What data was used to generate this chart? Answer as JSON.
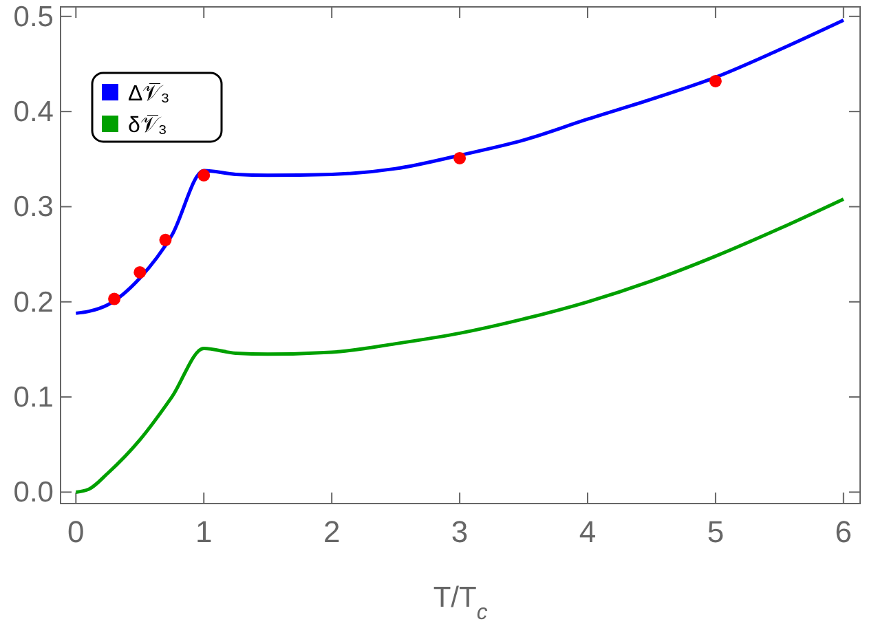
{
  "chart_data": {
    "type": "line",
    "xlabel": "T/T$_{c}$",
    "xlim": [
      -0.12,
      6.13
    ],
    "ylim": [
      -0.012,
      0.51
    ],
    "xticks": [
      0,
      1,
      2,
      3,
      4,
      5,
      6
    ],
    "yticks": [
      {
        "value": 0,
        "label": "0.0"
      },
      0.1,
      0.2,
      0.3,
      0.4,
      0.5
    ],
    "legend": "top left",
    "grid": false,
    "line_style": "solid",
    "marker": "none",
    "series": [
      {
        "name": "Δ𝒱̅₃",
        "color": "#0000ff",
        "x": [
          0,
          0.1,
          0.25,
          0.5,
          0.75,
          1,
          1.25,
          1.5,
          2,
          2.5,
          3,
          3.5,
          4,
          4.5,
          5,
          5.5,
          6
        ],
        "values": [
          0.188,
          0.19,
          0.197,
          0.225,
          0.27,
          0.338,
          0.334,
          0.333,
          0.334,
          0.34,
          0.354,
          0.37,
          0.392,
          0.413,
          0.436,
          0.465,
          0.496
        ]
      },
      {
        "name": "δ𝒱̅₃",
        "color": "#00a000",
        "x": [
          0,
          0.1,
          0.25,
          0.5,
          0.75,
          1,
          1.25,
          1.5,
          2,
          2.5,
          3,
          3.5,
          4,
          4.5,
          5,
          5.5,
          6
        ],
        "values": [
          0,
          0.003,
          0.02,
          0.055,
          0.1,
          0.151,
          0.146,
          0.145,
          0.147,
          0.156,
          0.167,
          0.182,
          0.2,
          0.222,
          0.248,
          0.277,
          0.308
        ]
      },
      {
        "type": "scatter",
        "color": "#ff0000",
        "marker": "circle",
        "x": [
          0.3,
          0.5,
          0.7,
          1,
          3,
          5
        ],
        "values": [
          0.203,
          0.231,
          0.265,
          0.333,
          0.351,
          0.432
        ]
      }
    ]
  }
}
